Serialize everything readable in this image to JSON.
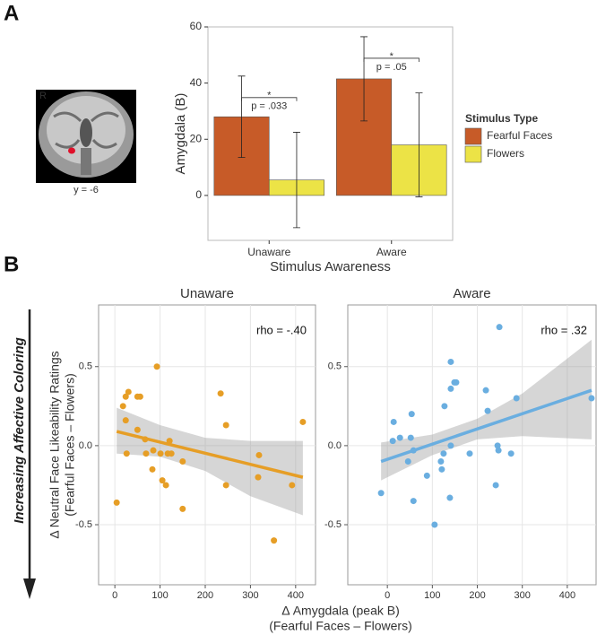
{
  "panel_labels": [
    "A",
    "B"
  ],
  "brain": {
    "side_label": "R",
    "slice_label": "y = -6"
  },
  "panel_b": {
    "x_label": [
      "Δ Amygdala (peak B)",
      "(Fearful Faces – Flowers)"
    ],
    "y_label": [
      "Δ Neutral Face Likeability Ratings",
      "(Fearful Faces – Flowers)"
    ],
    "arrow_label": "Increasing Affective Coloring"
  },
  "chart_data": [
    {
      "type": "bar",
      "x_label": "Stimulus Awareness",
      "y_label": "Amygdala (B)",
      "categories": [
        "Unaware",
        "Aware"
      ],
      "series": [
        {
          "name": "Fearful Faces",
          "color": "#c75b28",
          "values": [
            28,
            41.5
          ],
          "errors": [
            14.5,
            15
          ]
        },
        {
          "name": "Flowers",
          "color": "#ece346",
          "values": [
            5.5,
            18
          ],
          "errors": [
            17,
            18.5
          ]
        }
      ],
      "ylim": [
        -16,
        60
      ],
      "yticks": [
        0,
        20,
        40,
        60
      ],
      "legend_title": "Stimulus Type",
      "legend": "right",
      "annotations": [
        {
          "star": "*",
          "label": "p = .033"
        },
        {
          "star": "*",
          "label": "p = .05"
        }
      ]
    },
    {
      "type": "scatter",
      "title": "Unaware",
      "color": "#e69e26",
      "annotation": "rho = -.40",
      "x": [
        4,
        18,
        24,
        30,
        24,
        26,
        50,
        56,
        50,
        67,
        69,
        83,
        85,
        93,
        101,
        105,
        113,
        117,
        121,
        125,
        150,
        150,
        234,
        246,
        246,
        317,
        319,
        352,
        392,
        416
      ],
      "y": [
        -0.36,
        0.25,
        0.31,
        0.34,
        0.16,
        -0.05,
        0.31,
        0.31,
        0.1,
        0.04,
        -0.05,
        -0.15,
        -0.03,
        0.5,
        -0.05,
        -0.22,
        -0.25,
        -0.05,
        0.03,
        -0.05,
        -0.1,
        -0.4,
        0.33,
        0.13,
        -0.25,
        -0.2,
        -0.06,
        -0.6,
        -0.25,
        0.15
      ],
      "fit": {
        "x": [
          4,
          416
        ],
        "y": [
          0.09,
          -0.2
        ]
      },
      "band": {
        "x": [
          4,
          100,
          200,
          300,
          416
        ],
        "lower": [
          -0.05,
          -0.07,
          -0.16,
          -0.32,
          -0.44
        ],
        "upper": [
          0.24,
          0.13,
          0.05,
          0.03,
          0.03
        ]
      },
      "xlim": [
        -36,
        444
      ],
      "ylim": [
        -0.88,
        0.89
      ],
      "xticks": [
        0,
        100,
        200,
        300,
        400
      ],
      "yticks": [
        -0.5,
        {
          "value": 0,
          "label": "0.0"
        },
        0.5
      ],
      "grid": true
    },
    {
      "type": "scatter",
      "title": "Aware",
      "color": "#6aaee0",
      "annotation": "rho = .32",
      "x": [
        -14,
        14,
        12,
        28,
        46,
        54,
        52,
        58,
        58,
        88,
        105,
        119,
        121,
        125,
        127,
        139,
        141,
        141,
        141,
        149,
        153,
        183,
        219,
        223,
        241,
        245,
        247,
        249,
        275,
        287,
        454
      ],
      "y": [
        -0.3,
        0.15,
        0.03,
        0.05,
        -0.1,
        0.2,
        0.05,
        -0.03,
        -0.35,
        -0.19,
        -0.5,
        -0.1,
        -0.15,
        -0.05,
        0.25,
        -0.33,
        0,
        0.36,
        0.53,
        0.4,
        0.4,
        -0.05,
        0.35,
        0.22,
        -0.25,
        0,
        -0.03,
        0.75,
        -0.05,
        0.3,
        0.3
      ],
      "fit": {
        "x": [
          -14,
          454
        ],
        "y": [
          -0.1,
          0.35
        ]
      },
      "band": {
        "x": [
          -14,
          100,
          200,
          300,
          454
        ],
        "lower": [
          -0.22,
          -0.06,
          0.04,
          0.06,
          0.04
        ],
        "upper": [
          0.02,
          0.07,
          0.17,
          0.33,
          0.67
        ]
      },
      "xlim": [
        -88,
        464
      ],
      "ylim": [
        -0.88,
        0.89
      ],
      "xticks": [
        0,
        100,
        200,
        300,
        400
      ],
      "yticks": [
        -0.5,
        {
          "value": 0,
          "label": "0.0"
        },
        0.5
      ],
      "grid": true
    }
  ]
}
